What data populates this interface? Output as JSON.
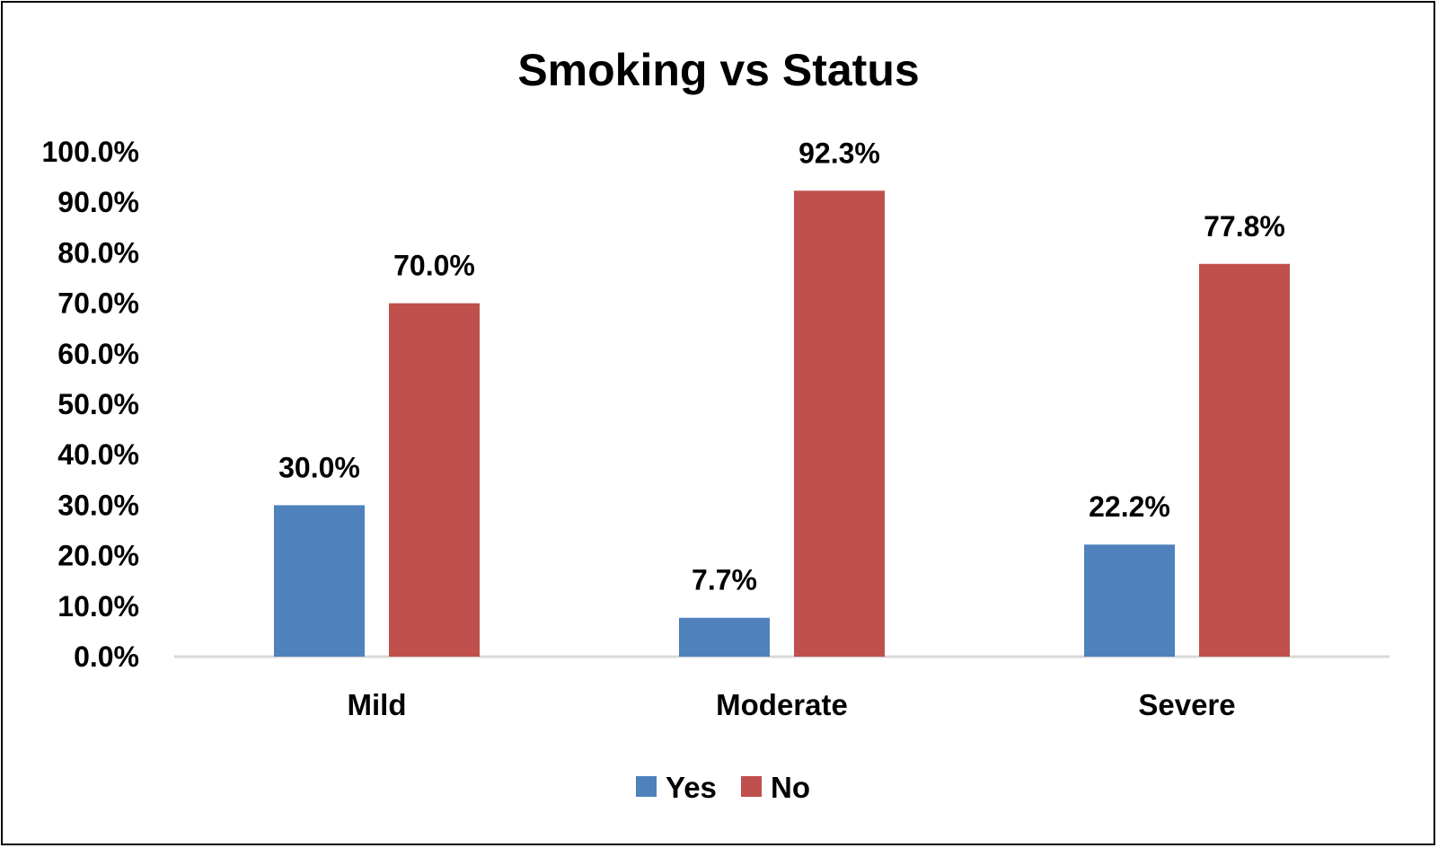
{
  "chart_data": {
    "type": "bar",
    "title": "Smoking vs Status",
    "xlabel": "",
    "ylabel": "",
    "categories": [
      "Mild",
      "Moderate",
      "Severe"
    ],
    "series": [
      {
        "name": "Yes",
        "values": [
          30.0,
          7.7,
          22.2
        ],
        "labels": [
          "30.0%",
          "7.7%",
          "22.2%"
        ],
        "color": "#4F81BD"
      },
      {
        "name": "No",
        "values": [
          70.0,
          92.3,
          77.8
        ],
        "labels": [
          "70.0%",
          "92.3%",
          "77.8%"
        ],
        "color": "#C0504D"
      }
    ],
    "ylim": [
      0,
      100
    ],
    "yticks": [
      "0.0%",
      "10.0%",
      "20.0%",
      "30.0%",
      "40.0%",
      "50.0%",
      "60.0%",
      "70.0%",
      "80.0%",
      "90.0%",
      "100.0%"
    ],
    "grid": false,
    "legend": "bottom",
    "axis_color": "#D9D9D9"
  }
}
